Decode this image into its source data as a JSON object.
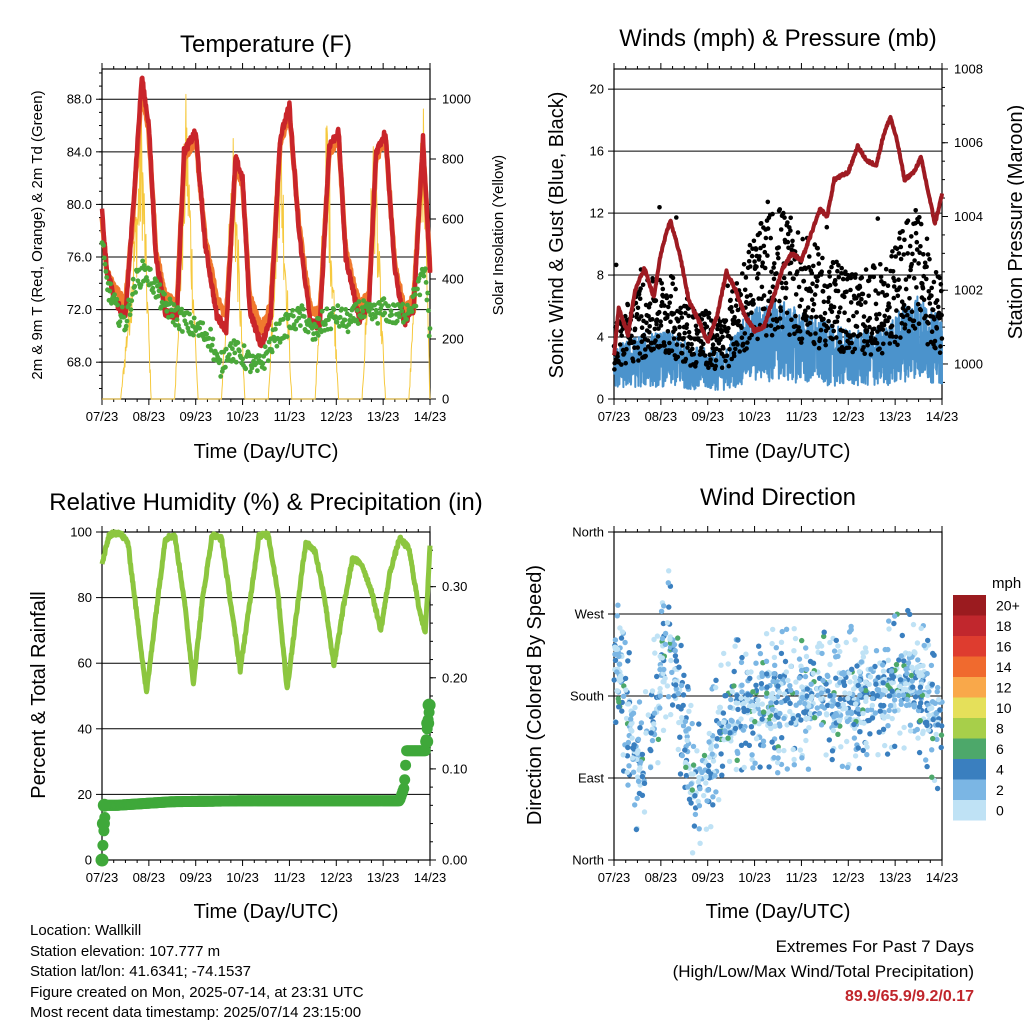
{
  "panels": {
    "temperature": {
      "title": "Temperature (F)",
      "xlabel": "Time (Day/UTC)",
      "ylabel_left": "2m & 9m T (Red, Orange) & 2m Td (Green)",
      "ylabel_right": "Solar Insolation (Yellow)"
    },
    "winds": {
      "title": "Winds (mph) & Pressure (mb)",
      "xlabel": "Time (Day/UTC)",
      "ylabel_left": "Sonic Wind & Gust (Blue, Black)",
      "ylabel_right": "Station Pressure (Maroon)"
    },
    "humidity": {
      "title": "Relative Humidity (%) & Precipitation (in)",
      "xlabel": "Time (Day/UTC)",
      "ylabel_left": "Percent & Total Rainfall"
    },
    "direction": {
      "title": "Wind Direction",
      "xlabel": "Time (Day/UTC)",
      "ylabel_left": "Direction (Colored By Speed)"
    }
  },
  "colorbar": {
    "unit": "mph",
    "labels": [
      "20+",
      "18",
      "16",
      "14",
      "12",
      "10",
      "8",
      "6",
      "4",
      "2",
      "0"
    ],
    "colors": [
      "#9b1b1f",
      "#c1272d",
      "#de3c2f",
      "#f06a2e",
      "#f9a84a",
      "#e5e05a",
      "#a7cf4a",
      "#4da86a",
      "#3a7fbf",
      "#7bb6e4",
      "#bfe2f5"
    ]
  },
  "info": {
    "location": "Location: Wallkill",
    "elevation": "Station elevation: 107.777 m",
    "latlon": "Station lat/lon: 41.6341; -74.1537",
    "created": "Figure created on Mon, 2025-07-14, at 23:31 UTC",
    "recent": "Most recent data timestamp: 2025/07/14 23:15:00"
  },
  "extremes": {
    "line1": "Extremes For Past 7 Days",
    "line2": "(High/Low/Max Wind/Total Precipitation)",
    "values": "89.9/65.9/9.2/0.17"
  },
  "chart_data": [
    {
      "id": "temperature",
      "type": "line",
      "title": "Temperature (F)",
      "xlabel": "Time (Day/UTC)",
      "ylabel": "2m & 9m T (Red, Orange) & 2m Td (Green)",
      "ylabel_right": "Solar Insolation (Yellow)",
      "x_ticks": [
        "07/23",
        "08/23",
        "09/23",
        "10/23",
        "11/23",
        "12/23",
        "13/23",
        "14/23"
      ],
      "xlim": [
        0,
        7
      ],
      "ylim": [
        65.2,
        90.3
      ],
      "y_ticks": [
        "68.0",
        "72.0",
        "76.0",
        "80.0",
        "84.0",
        "88.0"
      ],
      "y_ticks_right": [
        "0",
        "200",
        "400",
        "600",
        "800",
        "1000"
      ],
      "ylim_right": [
        0,
        1100
      ],
      "series": [
        {
          "name": "2m T",
          "color": "#c9252a",
          "x": [
            0,
            0.1,
            0.3,
            0.5,
            0.65,
            0.85,
            1.0,
            1.15,
            1.35,
            1.6,
            1.75,
            2.0,
            2.2,
            2.45,
            2.65,
            2.85,
            3.0,
            3.15,
            3.4,
            3.6,
            3.8,
            4.0,
            4.2,
            4.45,
            4.65,
            4.85,
            5.05,
            5.2,
            5.5,
            5.7,
            5.85,
            6.05,
            6.25,
            6.45,
            6.65,
            6.85,
            7.0
          ],
          "y": [
            79.5,
            75,
            72.5,
            71.5,
            79,
            89.7,
            86,
            76,
            71.8,
            71.5,
            84,
            85.5,
            77,
            71.5,
            70.5,
            83.5,
            82,
            72,
            69.2,
            71.5,
            85,
            87.5,
            78,
            71,
            70.8,
            84.5,
            85.5,
            76,
            71.2,
            72.5,
            84,
            85.5,
            75,
            71,
            72,
            85,
            75
          ]
        },
        {
          "name": "9m T",
          "color": "#f07a2e",
          "x": [
            0,
            0.1,
            0.3,
            0.5,
            0.65,
            0.85,
            1.0,
            1.15,
            1.35,
            1.6,
            1.75,
            2.0,
            2.2,
            2.45,
            2.65,
            2.85,
            3.0,
            3.15,
            3.4,
            3.6,
            3.8,
            4.0,
            4.2,
            4.45,
            4.65,
            4.85,
            5.05,
            5.2,
            5.5,
            5.7,
            5.85,
            6.05,
            6.25,
            6.45,
            6.65,
            6.85,
            7.0
          ],
          "y": [
            79,
            75,
            73.5,
            72.5,
            78.5,
            89,
            85.5,
            76.5,
            73,
            72.5,
            83.5,
            85,
            77.5,
            72.8,
            71.5,
            83,
            81.5,
            73,
            70.5,
            72.3,
            84.5,
            87,
            78.5,
            72,
            71.8,
            84,
            85,
            76.5,
            72.2,
            73.3,
            83.5,
            85,
            75.5,
            72,
            72.8,
            84.5,
            75
          ]
        },
        {
          "name": "2m Td",
          "color": "#4aa83a",
          "x": [
            0,
            0.1,
            0.3,
            0.5,
            0.7,
            0.9,
            1.1,
            1.3,
            1.6,
            1.8,
            2.0,
            2.3,
            2.5,
            2.7,
            3.0,
            3.3,
            3.5,
            3.7,
            4.0,
            4.3,
            4.5,
            4.7,
            5.0,
            5.3,
            5.5,
            5.7,
            6.0,
            6.3,
            6.5,
            6.7,
            6.9,
            7.0
          ],
          "y": [
            77,
            74,
            72,
            71,
            74,
            75,
            74,
            72.5,
            71.5,
            71,
            70.5,
            70,
            67.5,
            69,
            68.5,
            67.5,
            68.5,
            70,
            71,
            71.5,
            70,
            71,
            71.5,
            71,
            72,
            71.5,
            72,
            71.5,
            72,
            73,
            75,
            70
          ]
        },
        {
          "name": "Solar Insolation",
          "color": "#f6c93e",
          "axis": "right",
          "x": [
            0,
            0.4,
            0.65,
            0.85,
            1.05,
            1.3,
            1.55,
            1.8,
            2.05,
            2.3,
            2.55,
            2.8,
            3.05,
            3.3,
            3.55,
            3.8,
            4.05,
            4.3,
            4.55,
            4.8,
            5.05,
            5.3,
            5.55,
            5.8,
            6.05,
            6.3,
            6.55,
            6.85,
            7.0
          ],
          "y": [
            0,
            0,
            500,
            1000,
            0,
            0,
            0,
            1070,
            0,
            0,
            0,
            950,
            0,
            0,
            0,
            1050,
            0,
            0,
            0,
            1000,
            0,
            0,
            0,
            950,
            0,
            0,
            0,
            1050,
            0
          ]
        }
      ]
    },
    {
      "id": "winds",
      "type": "scatter",
      "title": "Winds (mph) & Pressure (mb)",
      "xlabel": "Time (Day/UTC)",
      "ylabel": "Sonic Wind & Gust (Blue, Black)",
      "ylabel_right": "Station Pressure (Maroon)",
      "x_ticks": [
        "07/23",
        "08/23",
        "09/23",
        "10/23",
        "11/23",
        "12/23",
        "13/23",
        "14/23"
      ],
      "xlim": [
        0,
        7
      ],
      "ylim": [
        0,
        21.3
      ],
      "y_ticks": [
        "0",
        "4",
        "8",
        "12",
        "16",
        "20"
      ],
      "y_ticks_right": [
        "1000",
        "1002",
        "1004",
        "1006",
        "1008"
      ],
      "ylim_right": [
        999.05,
        1008
      ],
      "series": [
        {
          "name": "Sonic Wind",
          "color": "#4b93cc",
          "mean_y": [
            2,
            2.5,
            2.6,
            2,
            1.8,
            3.5,
            3.8,
            3.3,
            2.8,
            2.6,
            2.8,
            4.2,
            3
          ]
        },
        {
          "name": "Gust",
          "color": "#000000",
          "mean_y": [
            3.5,
            5,
            5.5,
            4,
            3.5,
            7,
            8.5,
            7,
            6,
            5.5,
            6,
            8.5,
            5
          ]
        },
        {
          "name": "Station Pressure",
          "color": "#9e1b22",
          "axis": "right",
          "x": [
            0,
            0.1,
            0.3,
            0.45,
            0.65,
            0.85,
            1.0,
            1.2,
            1.4,
            1.6,
            1.8,
            2.0,
            2.2,
            2.4,
            2.6,
            2.8,
            3.0,
            3.2,
            3.4,
            3.6,
            3.8,
            4.0,
            4.2,
            4.4,
            4.55,
            4.7,
            4.85,
            5.0,
            5.2,
            5.4,
            5.6,
            5.75,
            5.9,
            6.05,
            6.2,
            6.4,
            6.55,
            6.7,
            6.85,
            7.0
          ],
          "y": [
            1000.2,
            1001.5,
            1000.8,
            1002.0,
            1002.6,
            1001.8,
            1003.0,
            1003.9,
            1003.0,
            1001.7,
            1001.2,
            1000.6,
            1001.3,
            1002.5,
            1002.0,
            1001.3,
            1000.9,
            1001.0,
            1001.8,
            1002.6,
            1003.0,
            1002.8,
            1003.5,
            1004.2,
            1004.0,
            1005.0,
            1005.1,
            1005.2,
            1005.9,
            1005.5,
            1005.4,
            1006.2,
            1006.7,
            1006.0,
            1005.0,
            1005.2,
            1005.6,
            1004.7,
            1003.8,
            1004.6
          ]
        }
      ]
    },
    {
      "id": "humidity",
      "type": "line",
      "title": "Relative Humidity (%) & Precipitation (in)",
      "xlabel": "Time (Day/UTC)",
      "ylabel": "Percent & Total Rainfall",
      "x_ticks": [
        "07/23",
        "08/23",
        "09/23",
        "10/23",
        "11/23",
        "12/23",
        "13/23",
        "14/23"
      ],
      "xlim": [
        0,
        7
      ],
      "ylim": [
        0,
        100
      ],
      "y_ticks": [
        "0",
        "20",
        "40",
        "60",
        "80",
        "100"
      ],
      "y_ticks_right": [
        "0.00",
        "0.10",
        "0.20",
        "0.30"
      ],
      "ylim_right": [
        0,
        0.36
      ],
      "series": [
        {
          "name": "Relative Humidity",
          "color": "#8cc63f",
          "x": [
            0,
            0.15,
            0.35,
            0.55,
            0.75,
            0.95,
            1.15,
            1.35,
            1.55,
            1.75,
            1.95,
            2.15,
            2.35,
            2.55,
            2.75,
            2.95,
            3.15,
            3.35,
            3.55,
            3.75,
            3.95,
            4.15,
            4.35,
            4.55,
            4.75,
            4.95,
            5.15,
            5.35,
            5.55,
            5.75,
            5.95,
            6.15,
            6.35,
            6.55,
            6.75,
            6.9,
            7.0
          ],
          "y": [
            90,
            99,
            100,
            97,
            74,
            51,
            75,
            98,
            99,
            80,
            54,
            80,
            99,
            98,
            78,
            58,
            78,
            99,
            99,
            82,
            52,
            75,
            97,
            94,
            80,
            59,
            77,
            92,
            90,
            82,
            70,
            88,
            98,
            95,
            78,
            69,
            96
          ]
        },
        {
          "name": "Total Precipitation",
          "color": "#3fa83a",
          "axis": "right",
          "x": [
            0,
            0.05,
            0.08,
            0.3,
            1.5,
            3.0,
            4.5,
            6.0,
            6.35,
            6.45,
            6.5,
            6.9,
            6.95,
            7.0
          ],
          "y": [
            0.0,
            0.04,
            0.06,
            0.06,
            0.064,
            0.065,
            0.065,
            0.065,
            0.065,
            0.08,
            0.12,
            0.12,
            0.15,
            0.17
          ]
        }
      ]
    },
    {
      "id": "direction",
      "type": "scatter",
      "title": "Wind Direction",
      "xlabel": "Time (Day/UTC)",
      "ylabel": "Direction (Colored By Speed)",
      "x_ticks": [
        "07/23",
        "08/23",
        "09/23",
        "10/23",
        "11/23",
        "12/23",
        "13/23",
        "14/23"
      ],
      "xlim": [
        0,
        7
      ],
      "y_ticks": [
        "North",
        "East",
        "South",
        "West",
        "North"
      ],
      "ylim": [
        0,
        360
      ],
      "colorbar_label": "mph",
      "series": [
        {
          "name": "Direction",
          "colored_by": "speed",
          "mean_y": [
            220,
            90,
            250,
            60,
            150,
            180,
            175,
            180,
            175,
            178,
            190,
            200,
            150
          ]
        }
      ]
    }
  ]
}
